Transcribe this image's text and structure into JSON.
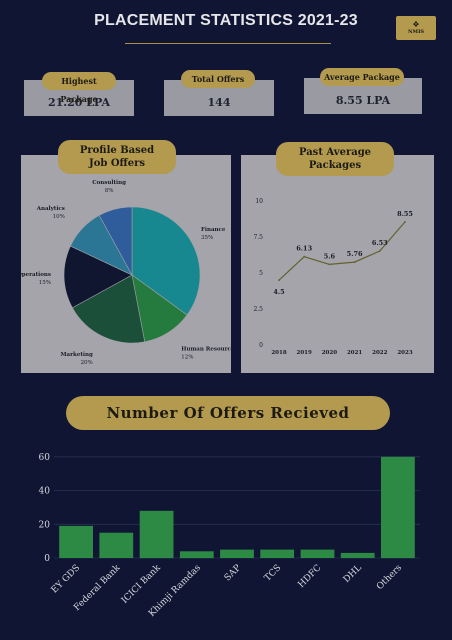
{
  "header": {
    "title": "PLACEMENT STATISTICS 2021-23",
    "logo_icon": "nmims-logo-icon",
    "logo_text": "NMIS",
    "accent_color": "#b39a4f"
  },
  "stats": [
    {
      "label": "Highest Package",
      "value": "21.20 LPA"
    },
    {
      "label": "Total Offers",
      "value": "144"
    },
    {
      "label": "Average Package",
      "value": "8.55 LPA"
    }
  ],
  "chart_data": [
    {
      "type": "pie",
      "title_line1": "Profile Based",
      "title_line2": "Job Offers",
      "slices": [
        {
          "name": "Finance",
          "value": 35,
          "label": "35%",
          "color": "#17888f"
        },
        {
          "name": "Human Resource",
          "value": 12,
          "label": "12%",
          "color": "#257a3e"
        },
        {
          "name": "Marketing",
          "value": 20,
          "label": "20%",
          "color": "#1b4f39"
        },
        {
          "name": "Operations",
          "value": 15,
          "label": "15%",
          "color": "#111630"
        },
        {
          "name": "Analytics",
          "value": 10,
          "label": "10%",
          "color": "#2a7694"
        },
        {
          "name": "Consulting",
          "value": 8,
          "label": "8%",
          "color": "#2f5c9a"
        }
      ]
    },
    {
      "type": "line",
      "title_line1": "Past Average",
      "title_line2": "Packages",
      "x": [
        "2018",
        "2019",
        "2020",
        "2021",
        "2022",
        "2023"
      ],
      "y": [
        4.5,
        6.13,
        5.6,
        5.76,
        6.53,
        8.55
      ],
      "labels": [
        "4.5",
        "6.13",
        "5.6",
        "5.76",
        "6.53",
        "8.55"
      ],
      "y_ticks": [
        0,
        2.5,
        5,
        7.5,
        10
      ],
      "y_tick_labels": [
        "0",
        "2.5",
        "5",
        "7.5",
        "10"
      ],
      "ylim": [
        0,
        10
      ],
      "line_color": "#62622f"
    },
    {
      "type": "bar",
      "title": "Number Of Offers Recieved",
      "categories": [
        "EY GDS",
        "Federal Bank",
        "ICICI Bank",
        "Khimji Ramdas",
        "SAP",
        "TCS",
        "HDFC",
        "DHL",
        "Others"
      ],
      "values": [
        19,
        15,
        28,
        4,
        5,
        5,
        5,
        3,
        60
      ],
      "y_ticks": [
        0,
        20,
        40,
        60
      ],
      "y_tick_labels": [
        "0",
        "20",
        "40",
        "60"
      ],
      "ylim": [
        0,
        64
      ],
      "grid": true,
      "bar_color": "#2c8a45"
    }
  ]
}
